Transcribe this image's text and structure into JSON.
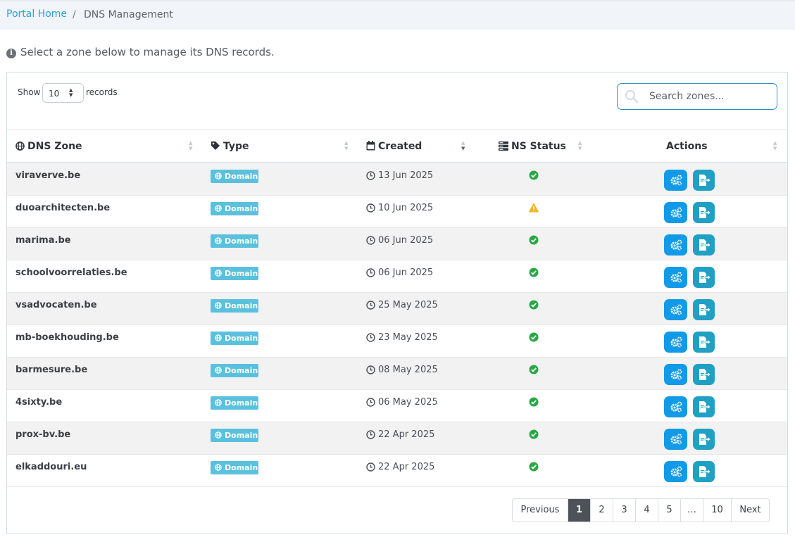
{
  "breadcrumb": {
    "home": "Portal Home",
    "separator": "/",
    "current": "DNS Management"
  },
  "info": {
    "text": "Select a zone below to manage its DNS records.",
    "icon": "info-circle-icon"
  },
  "length_control": {
    "show_label": "Show",
    "value": "10",
    "records_label": "records"
  },
  "search": {
    "placeholder": "Search zones..."
  },
  "columns": [
    {
      "label": "DNS Zone",
      "icon": "globe-icon"
    },
    {
      "label": "Type",
      "icon": "tag-icon"
    },
    {
      "label": "Created",
      "icon": "calendar-icon",
      "sorted": "desc"
    },
    {
      "label": "NS Status",
      "icon": "server-icon"
    },
    {
      "label": "Actions"
    }
  ],
  "rows": [
    {
      "zone": "viraverve.be",
      "type": "Domain",
      "created": "13 Jun 2025",
      "status": "ok"
    },
    {
      "zone": "duoarchitecten.be",
      "type": "Domain",
      "created": "10 Jun 2025",
      "status": "warning"
    },
    {
      "zone": "marima.be",
      "type": "Domain",
      "created": "06 Jun 2025",
      "status": "ok"
    },
    {
      "zone": "schoolvoorrelaties.be",
      "type": "Domain",
      "created": "06 Jun 2025",
      "status": "ok"
    },
    {
      "zone": "vsadvocaten.be",
      "type": "Domain",
      "created": "25 May 2025",
      "status": "ok"
    },
    {
      "zone": "mb-boekhouding.be",
      "type": "Domain",
      "created": "23 May 2025",
      "status": "ok"
    },
    {
      "zone": "barmesure.be",
      "type": "Domain",
      "created": "08 May 2025",
      "status": "ok"
    },
    {
      "zone": "4sixty.be",
      "type": "Domain",
      "created": "06 May 2025",
      "status": "ok"
    },
    {
      "zone": "prox-bv.be",
      "type": "Domain",
      "created": "22 Apr 2025",
      "status": "ok"
    },
    {
      "zone": "elkaddouri.eu",
      "type": "Domain",
      "created": "22 Apr 2025",
      "status": "ok"
    }
  ],
  "pagination": {
    "previous": "Previous",
    "pages": [
      "1",
      "2",
      "3",
      "4",
      "5",
      "…",
      "10"
    ],
    "active": "1",
    "next": "Next"
  },
  "colors": {
    "link": "#2a9fd8",
    "badge": "#5bc0de",
    "manage_button": "#119ae8",
    "export_button": "#1fa0c4",
    "ok": "#28a745",
    "warning": "#f0b429",
    "active_page": "#4d5259"
  }
}
